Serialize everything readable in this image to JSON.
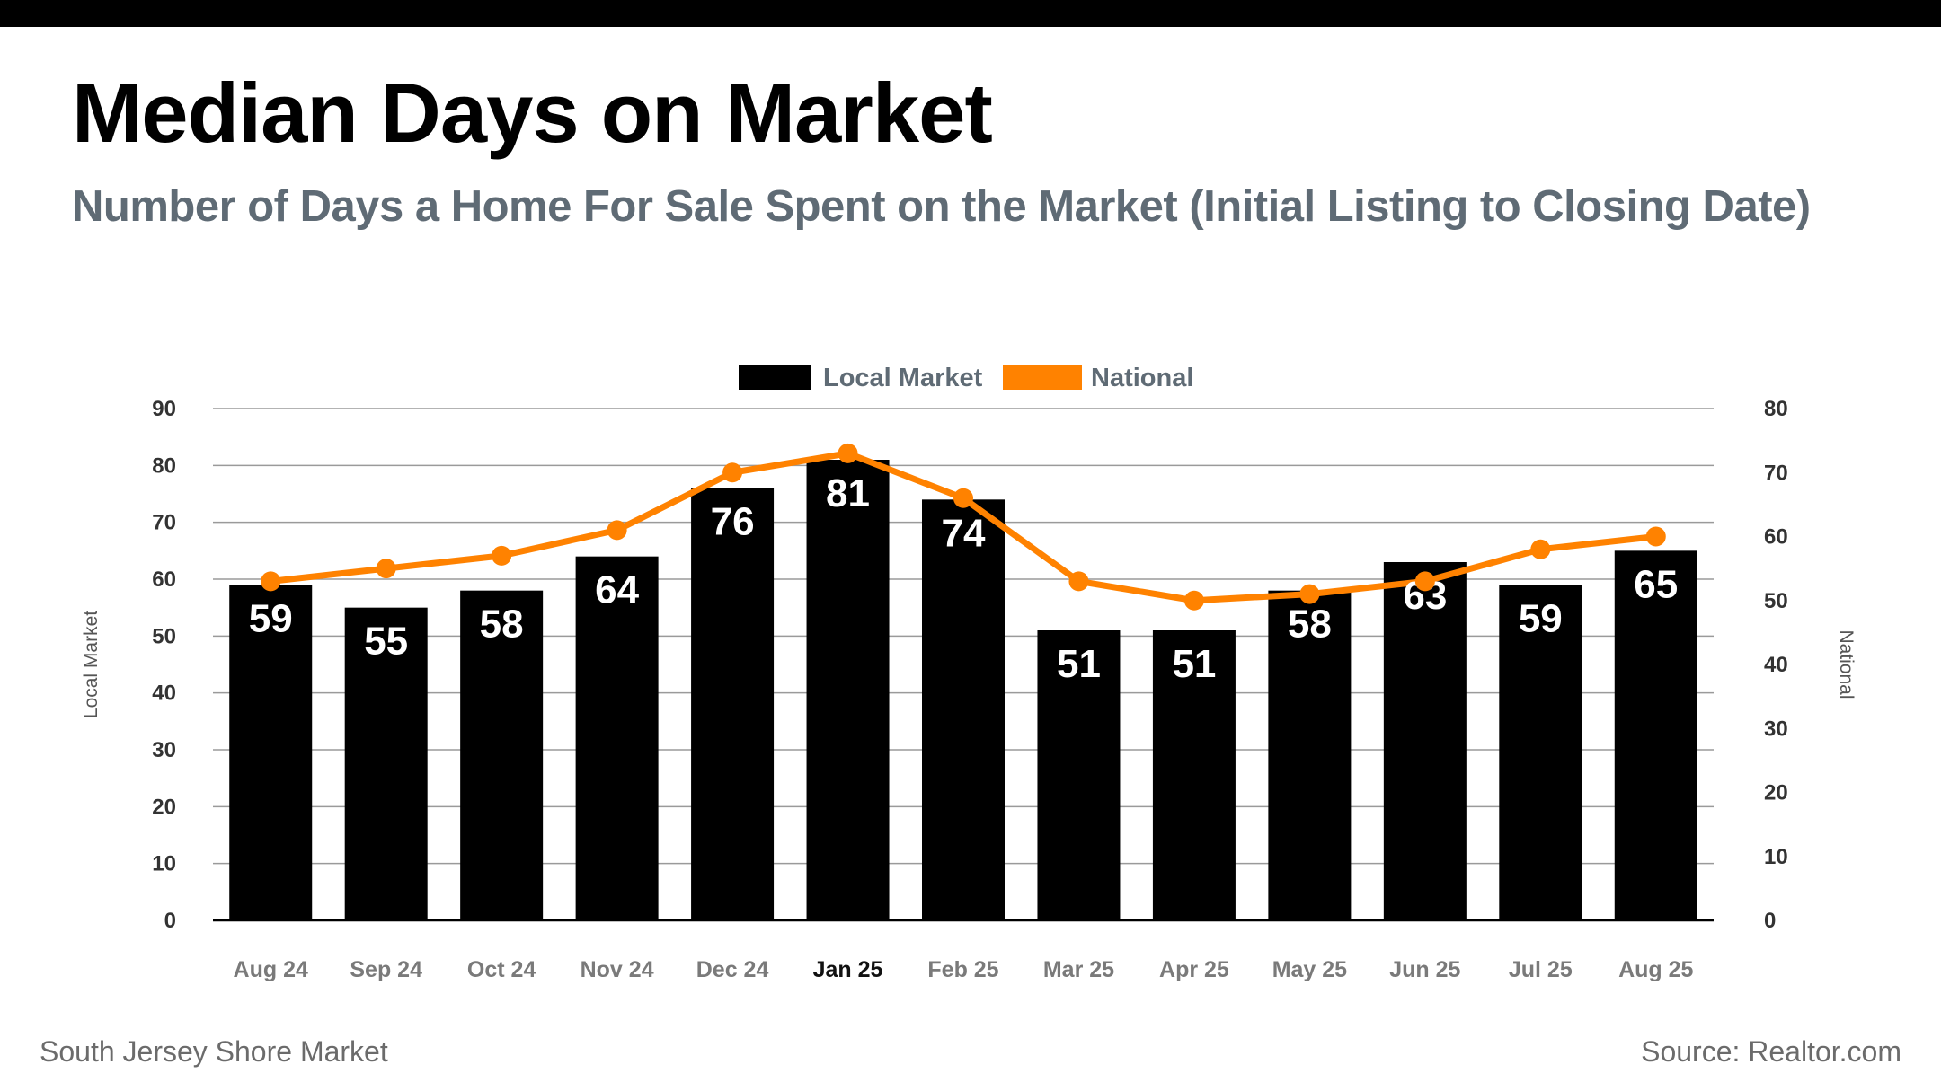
{
  "header": {
    "title": "Median Days on Market",
    "subtitle": "Number of Days a Home For Sale Spent on the Market (Initial Listing to Closing Date)"
  },
  "footer": {
    "left": "South Jersey Shore Market",
    "right": "Source: Realtor.com"
  },
  "colors": {
    "bar": "#000000",
    "line": "#ff8200",
    "grid": "#9a9a9a",
    "axis_text": "#333333",
    "subtitle": "#5f6b75"
  },
  "chart_data": {
    "type": "bar",
    "categories": [
      "Aug 24",
      "Sep 24",
      "Oct 24",
      "Nov 24",
      "Dec 24",
      "Jan 25",
      "Feb 25",
      "Mar 25",
      "Apr 25",
      "May 25",
      "Jun 25",
      "Jul 25",
      "Aug 25"
    ],
    "highlighted_category": "Jan 25",
    "series": [
      {
        "name": "Local Market",
        "type": "bar",
        "axis": "left",
        "values": [
          59,
          55,
          58,
          64,
          76,
          81,
          74,
          51,
          51,
          58,
          63,
          59,
          65
        ],
        "data_labels": [
          "59",
          "55",
          "58",
          "64",
          "76",
          "81",
          "74",
          "51",
          "51",
          "58",
          "63",
          "59",
          "65"
        ]
      },
      {
        "name": "National",
        "type": "line",
        "axis": "right",
        "values": [
          53,
          55,
          57,
          61,
          70,
          73,
          66,
          53,
          50,
          51,
          53,
          58,
          60
        ]
      }
    ],
    "y_left": {
      "label": "Local Market",
      "lim": [
        0,
        90
      ],
      "ticks": [
        "0",
        "10",
        "20",
        "30",
        "40",
        "50",
        "60",
        "70",
        "80",
        "90"
      ]
    },
    "y_right": {
      "label": "National",
      "lim": [
        0,
        80
      ],
      "ticks": [
        "0",
        "10",
        "20",
        "30",
        "40",
        "50",
        "60",
        "70",
        "80"
      ]
    },
    "grid": true,
    "legend_position": "top-center"
  }
}
